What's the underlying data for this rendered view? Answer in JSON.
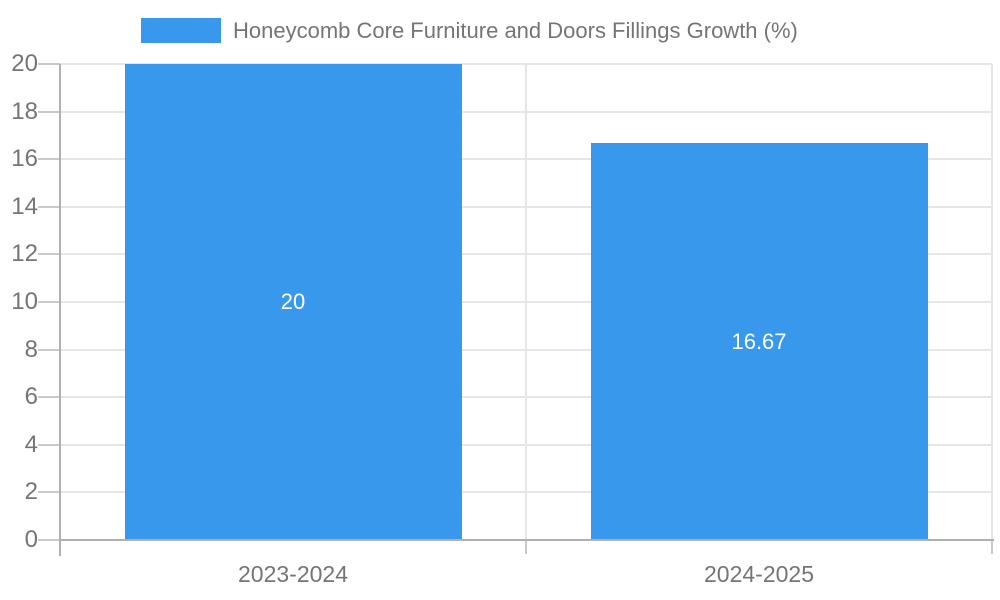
{
  "legend": {
    "label": "Honeycomb Core Furniture and Doors Fillings Growth (%)"
  },
  "chart_data": {
    "type": "bar",
    "title": "Honeycomb Core Furniture and Doors Fillings Growth (%)",
    "categories": [
      "2023-2024",
      "2024-2025"
    ],
    "values": [
      20,
      16.67
    ],
    "bar_labels": [
      "20",
      "16.67"
    ],
    "xlabel": "",
    "ylabel": "",
    "ylim": [
      0,
      20
    ],
    "ytick_step": 2,
    "yticks": [
      0,
      2,
      4,
      6,
      8,
      10,
      12,
      14,
      16,
      18,
      20
    ],
    "grid": true,
    "legend_position": "top",
    "bar_label_position": "center",
    "colors": {
      "bar": "#3899ec",
      "gridline": "#e6e6e6",
      "axis_line": "#b0b0b0",
      "tick_line": "#c9c9c9",
      "text": "#757575",
      "bar_label_text": "#ffffff",
      "background": "#ffffff"
    }
  }
}
